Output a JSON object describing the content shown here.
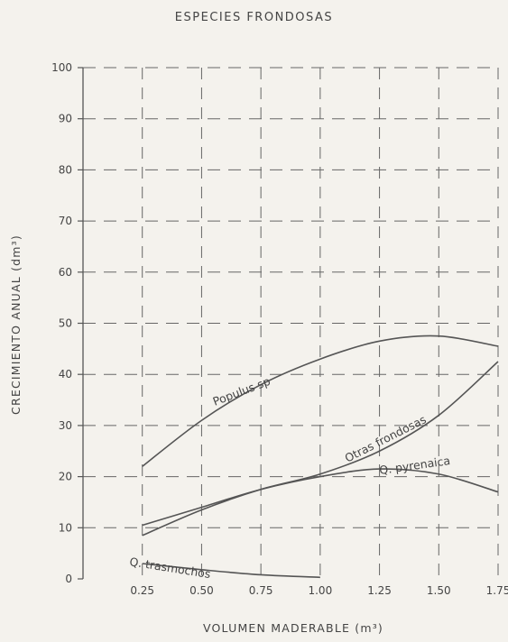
{
  "chart_data": {
    "type": "line",
    "title": "ESPECIES FRONDOSAS",
    "xlabel": "VOLUMEN MADERABLE (m³)",
    "ylabel": "CRECIMIENTO ANUAL (dm³)",
    "xlim": [
      0,
      1.75
    ],
    "ylim": [
      0,
      100
    ],
    "x_ticks": [
      "0.25",
      "0.50",
      "0.75",
      "1.00",
      "1.25",
      "1.50",
      "1.75"
    ],
    "y_ticks": [
      "0",
      "10",
      "20",
      "30",
      "40",
      "50",
      "60",
      "70",
      "80",
      "90",
      "100"
    ],
    "grid": true,
    "line_color": "#555555",
    "series": [
      {
        "name": "Populus sp",
        "x": [
          0.25,
          0.5,
          0.75,
          1.0,
          1.25,
          1.5,
          1.75
        ],
        "y": [
          22,
          31,
          38,
          43,
          46.5,
          47.5,
          45.5
        ]
      },
      {
        "name": "Otras frondosas",
        "x": [
          0.25,
          0.5,
          0.75,
          1.0,
          1.25,
          1.5,
          1.75
        ],
        "y": [
          8.5,
          13.5,
          17.5,
          20.5,
          25,
          32,
          42.5
        ]
      },
      {
        "name": "Q. pyrenaica",
        "x": [
          0.25,
          0.5,
          0.75,
          1.0,
          1.25,
          1.5,
          1.75
        ],
        "y": [
          10.5,
          14,
          17.5,
          20,
          21.5,
          20.5,
          17
        ]
      },
      {
        "name": "Q. trasmochos",
        "x": [
          0.25,
          0.5,
          0.75,
          1.0
        ],
        "y": [
          3,
          1.8,
          0.8,
          0.3
        ]
      }
    ]
  }
}
